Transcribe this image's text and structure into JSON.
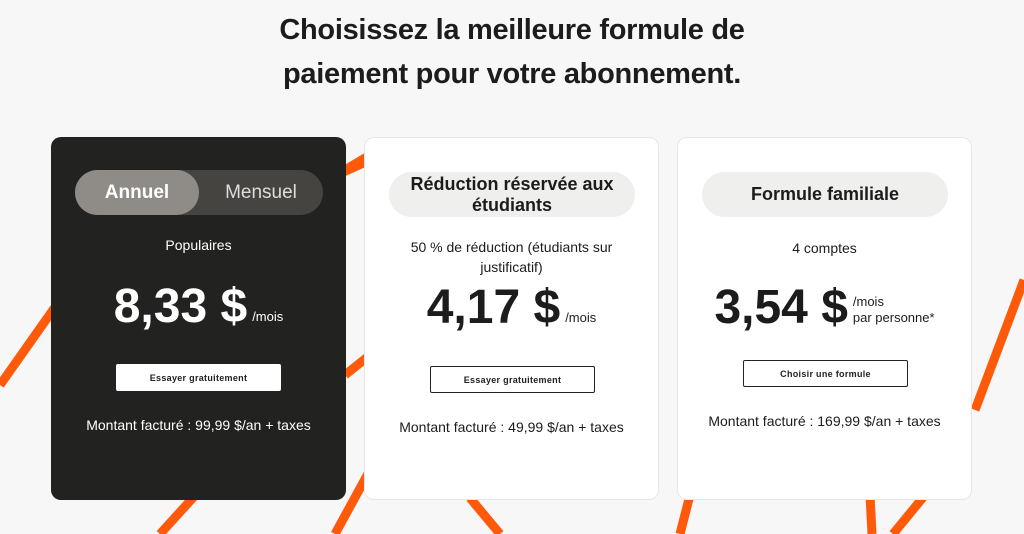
{
  "title_line1": "Choisissez la meilleure formule de",
  "title_line2": "paiement pour votre abonnement.",
  "colors": {
    "accent": "#ff5a0a",
    "dark_card": "#222220",
    "background": "#f7f7f7"
  },
  "plans": [
    {
      "toggle": {
        "annual": "Annuel",
        "monthly": "Mensuel",
        "selected": "Annuel"
      },
      "subtitle": "Populaires",
      "price": "8,33 $",
      "unit": "/mois",
      "button": "Essayer gratuitement",
      "billing": "Montant facturé : 99,99 $/an + taxes"
    },
    {
      "name": "Réduction réservée aux étudiants",
      "subtitle": "50 % de réduction (étudiants sur justificatif)",
      "price": "4,17 $",
      "unit": "/mois",
      "button": "Essayer gratuitement",
      "billing": "Montant facturé : 49,99 $/an + taxes"
    },
    {
      "name": "Formule familiale",
      "subtitle": "4 comptes",
      "price": "3,54 $",
      "unit": "/mois",
      "unit2": "par personne*",
      "button": "Choisir une formule",
      "billing": "Montant facturé : 169,99 $/an + taxes"
    }
  ]
}
